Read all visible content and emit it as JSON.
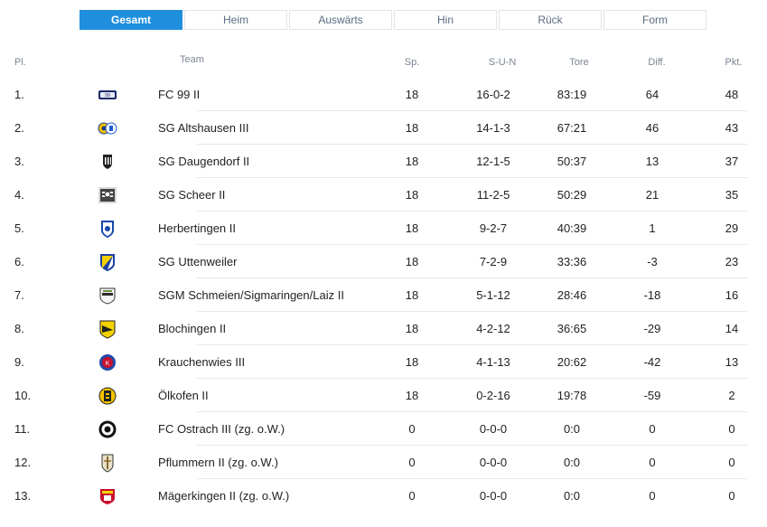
{
  "tabs": [
    {
      "label": "Gesamt",
      "active": true
    },
    {
      "label": "Heim",
      "active": false
    },
    {
      "label": "Auswärts",
      "active": false
    },
    {
      "label": "Hin",
      "active": false
    },
    {
      "label": "Rück",
      "active": false
    },
    {
      "label": "Form",
      "active": false
    }
  ],
  "columns": {
    "pl": "Pl.",
    "team": "Team",
    "sp": "Sp.",
    "sun": "S-U-N",
    "tore": "Tore",
    "diff": "Diff.",
    "pkt": "Pkt."
  },
  "colors": {
    "accent": "#1f8fdd"
  },
  "rows": [
    {
      "pl": "1.",
      "logo": "fc99-crest-icon",
      "team": "FC 99 II",
      "sp": "18",
      "sun": "16-0-2",
      "tore": "83:19",
      "diff": "64",
      "pkt": "48"
    },
    {
      "pl": "2.",
      "logo": "sg-altshausen-crest-icon",
      "team": "SG Altshausen III",
      "sp": "18",
      "sun": "14-1-3",
      "tore": "67:21",
      "diff": "46",
      "pkt": "43"
    },
    {
      "pl": "3.",
      "logo": "sg-daugendorf-crest-icon",
      "team": "SG Daugendorf II",
      "sp": "18",
      "sun": "12-1-5",
      "tore": "50:37",
      "diff": "13",
      "pkt": "37"
    },
    {
      "pl": "4.",
      "logo": "sg-scheer-crest-icon",
      "team": "SG Scheer II",
      "sp": "18",
      "sun": "11-2-5",
      "tore": "50:29",
      "diff": "21",
      "pkt": "35"
    },
    {
      "pl": "5.",
      "logo": "herbertingen-crest-icon",
      "team": "Herbertingen II",
      "sp": "18",
      "sun": "9-2-7",
      "tore": "40:39",
      "diff": "1",
      "pkt": "29"
    },
    {
      "pl": "6.",
      "logo": "sg-uttenweiler-crest-icon",
      "team": "SG Uttenweiler",
      "sp": "18",
      "sun": "7-2-9",
      "tore": "33:36",
      "diff": "-3",
      "pkt": "23"
    },
    {
      "pl": "7.",
      "logo": "sgm-schmeien-crest-icon",
      "team": "SGM Schmeien/Sigmaringen/Laiz II",
      "sp": "18",
      "sun": "5-1-12",
      "tore": "28:46",
      "diff": "-18",
      "pkt": "16"
    },
    {
      "pl": "8.",
      "logo": "blochingen-crest-icon",
      "team": "Blochingen II",
      "sp": "18",
      "sun": "4-2-12",
      "tore": "36:65",
      "diff": "-29",
      "pkt": "14"
    },
    {
      "pl": "9.",
      "logo": "krauchenwies-crest-icon",
      "team": "Krauchenwies III",
      "sp": "18",
      "sun": "4-1-13",
      "tore": "20:62",
      "diff": "-42",
      "pkt": "13"
    },
    {
      "pl": "10.",
      "logo": "oelkofen-crest-icon",
      "team": "Ölkofen II",
      "sp": "18",
      "sun": "0-2-16",
      "tore": "19:78",
      "diff": "-59",
      "pkt": "2"
    },
    {
      "pl": "11.",
      "logo": "fc-ostrach-crest-icon",
      "team": "FC Ostrach III (zg. o.W.)",
      "sp": "0",
      "sun": "0-0-0",
      "tore": "0:0",
      "diff": "0",
      "pkt": "0"
    },
    {
      "pl": "12.",
      "logo": "pflummern-crest-icon",
      "team": "Pflummern II (zg. o.W.)",
      "sp": "0",
      "sun": "0-0-0",
      "tore": "0:0",
      "diff": "0",
      "pkt": "0"
    },
    {
      "pl": "13.",
      "logo": "maegerkingen-crest-icon",
      "team": "Mägerkingen II (zg. o.W.)",
      "sp": "0",
      "sun": "0-0-0",
      "tore": "0:0",
      "diff": "0",
      "pkt": "0"
    }
  ]
}
